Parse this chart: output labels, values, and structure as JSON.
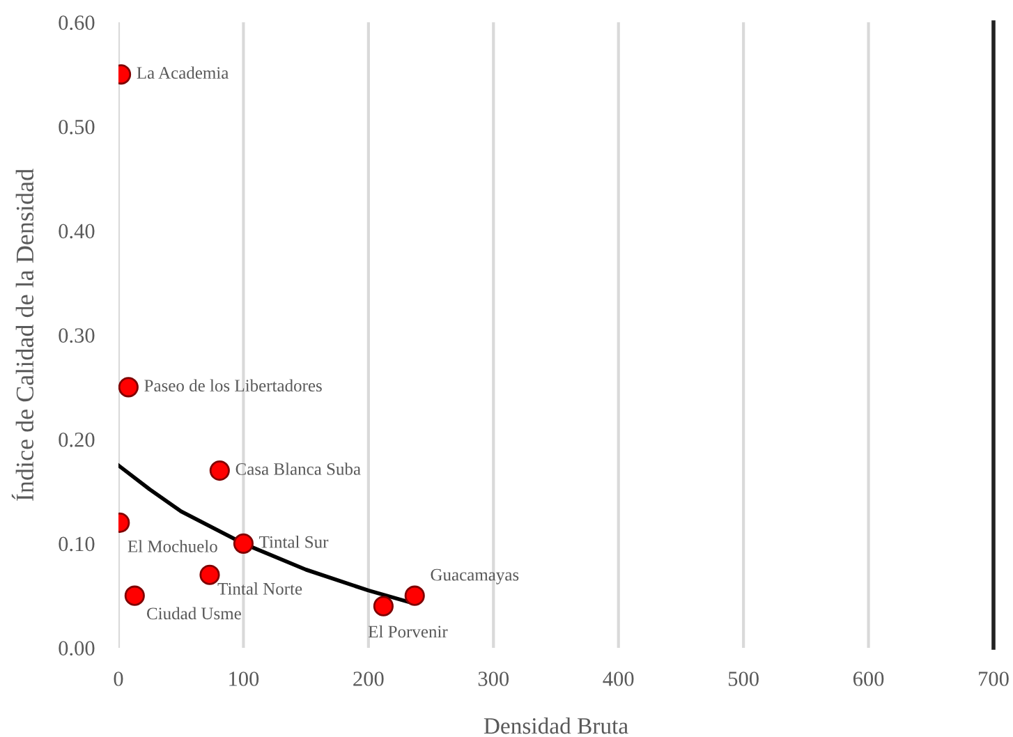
{
  "chart_data": {
    "type": "scatter",
    "xlabel": "Densidad Bruta",
    "ylabel": "Índice de Calidad de la Densidad",
    "xlim": [
      0,
      700
    ],
    "xticks": [
      0,
      100,
      200,
      300,
      400,
      500,
      600,
      700
    ],
    "ylim": [
      0,
      0.6
    ],
    "yticks": [
      {
        "value": 0,
        "label": "0.00"
      },
      {
        "value": 0.1,
        "label": "0.10"
      },
      {
        "value": 0.2,
        "label": "0.20"
      },
      {
        "value": 0.3,
        "label": "0.30"
      },
      {
        "value": 0.4,
        "label": "0.40"
      },
      {
        "value": 0.5,
        "label": "0.50"
      },
      {
        "value": 0.6,
        "label": "0.60"
      }
    ],
    "grid": "x",
    "series": [
      {
        "marker": "circle",
        "color": "#ff0000",
        "x": [
          2,
          8,
          81,
          1,
          100,
          73,
          13,
          212,
          237
        ],
        "values": [
          0.55,
          0.25,
          0.17,
          0.12,
          0.1,
          0.07,
          0.05,
          0.04,
          0.05
        ]
      },
      {
        "type": "line",
        "marker": "none",
        "color": "#000000",
        "x": [
          0,
          25,
          50,
          100,
          150,
          200,
          235
        ],
        "values": [
          0.175,
          0.152,
          0.131,
          0.1,
          0.075,
          0.055,
          0.043
        ]
      }
    ],
    "annotations": [
      {
        "text": "La Academia",
        "x": 2,
        "y": 0.55
      },
      {
        "text": "Paseo de los Libertadores",
        "x": 8,
        "y": 0.25
      },
      {
        "text": "Casa Blanca Suba",
        "x": 81,
        "y": 0.17
      },
      {
        "text": "El Mochuelo",
        "x": 1,
        "y": 0.12
      },
      {
        "text": "Tintal Sur",
        "x": 100,
        "y": 0.1
      },
      {
        "text": "Tintal Norte",
        "x": 73,
        "y": 0.07
      },
      {
        "text": "Ciudad Usme",
        "x": 13,
        "y": 0.05
      },
      {
        "text": "El Porvenir",
        "x": 212,
        "y": 0.04
      },
      {
        "text": "Guacamayas",
        "x": 237,
        "y": 0.05
      }
    ]
  }
}
